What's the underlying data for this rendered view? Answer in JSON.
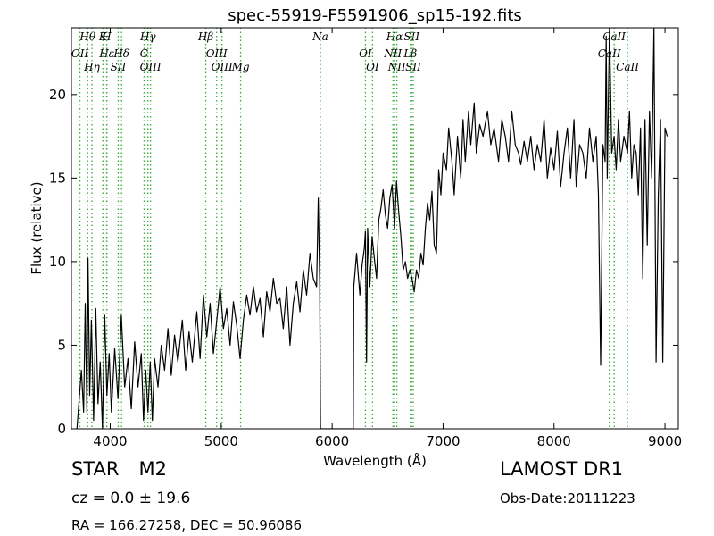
{
  "chart_data": {
    "type": "line",
    "title": "spec-55919-F5591906_sp15-192.fits",
    "xlabel": "Wavelength (Å)",
    "ylabel": "Flux (relative)",
    "xlim": [
      3650,
      9120
    ],
    "ylim": [
      0,
      24
    ],
    "xticks": [
      4000,
      5000,
      6000,
      7000,
      8000,
      9000
    ],
    "yticks": [
      0,
      5,
      10,
      15,
      20
    ],
    "grid": false,
    "series": [
      {
        "color": "#000000",
        "points": [
          [
            3700,
            0
          ],
          [
            3740,
            3.5
          ],
          [
            3760,
            1.0
          ],
          [
            3775,
            7.5
          ],
          [
            3790,
            1.0
          ],
          [
            3800,
            10.2
          ],
          [
            3815,
            2.0
          ],
          [
            3830,
            6.5
          ],
          [
            3850,
            0.5
          ],
          [
            3870,
            7.2
          ],
          [
            3890,
            1.5
          ],
          [
            3910,
            4.0
          ],
          [
            3930,
            0.0
          ],
          [
            3950,
            6.8
          ],
          [
            3970,
            2.0
          ],
          [
            3990,
            4.5
          ],
          [
            4010,
            1.0
          ],
          [
            4040,
            4.8
          ],
          [
            4070,
            1.8
          ],
          [
            4100,
            6.8
          ],
          [
            4130,
            2.5
          ],
          [
            4160,
            4.2
          ],
          [
            4190,
            1.2
          ],
          [
            4220,
            5.2
          ],
          [
            4250,
            2.5
          ],
          [
            4280,
            4.5
          ],
          [
            4300,
            0.5
          ],
          [
            4320,
            3.5
          ],
          [
            4340,
            1.0
          ],
          [
            4360,
            4.0
          ],
          [
            4380,
            0.5
          ],
          [
            4400,
            4.2
          ],
          [
            4430,
            2.5
          ],
          [
            4460,
            5.0
          ],
          [
            4490,
            3.5
          ],
          [
            4520,
            6.0
          ],
          [
            4550,
            3.2
          ],
          [
            4580,
            5.6
          ],
          [
            4610,
            4.0
          ],
          [
            4650,
            6.5
          ],
          [
            4680,
            3.5
          ],
          [
            4710,
            5.8
          ],
          [
            4740,
            4.0
          ],
          [
            4780,
            7.0
          ],
          [
            4810,
            4.2
          ],
          [
            4840,
            8.0
          ],
          [
            4870,
            5.5
          ],
          [
            4900,
            7.5
          ],
          [
            4930,
            4.5
          ],
          [
            4960,
            6.5
          ],
          [
            4990,
            8.5
          ],
          [
            5020,
            6.0
          ],
          [
            5050,
            7.2
          ],
          [
            5080,
            5.0
          ],
          [
            5110,
            7.6
          ],
          [
            5140,
            6.2
          ],
          [
            5170,
            4.2
          ],
          [
            5200,
            6.5
          ],
          [
            5230,
            8.0
          ],
          [
            5260,
            6.8
          ],
          [
            5290,
            8.5
          ],
          [
            5320,
            7.0
          ],
          [
            5350,
            7.8
          ],
          [
            5380,
            5.5
          ],
          [
            5410,
            8.2
          ],
          [
            5440,
            7.0
          ],
          [
            5470,
            9.0
          ],
          [
            5500,
            7.5
          ],
          [
            5530,
            7.8
          ],
          [
            5560,
            6.0
          ],
          [
            5590,
            8.5
          ],
          [
            5620,
            5.0
          ],
          [
            5650,
            7.5
          ],
          [
            5680,
            8.8
          ],
          [
            5710,
            7.0
          ],
          [
            5740,
            9.5
          ],
          [
            5770,
            8.0
          ],
          [
            5800,
            10.5
          ],
          [
            5830,
            9.0
          ],
          [
            5860,
            8.5
          ],
          [
            5875,
            13.8
          ],
          [
            5888,
            8.8
          ],
          [
            5895,
            0.0
          ],
          [
            6190,
            0.0
          ],
          [
            6195,
            8.5
          ],
          [
            6220,
            10.5
          ],
          [
            6250,
            8.0
          ],
          [
            6270,
            9.8
          ],
          [
            6290,
            10.8
          ],
          [
            6300,
            11.8
          ],
          [
            6310,
            4.0
          ],
          [
            6320,
            12.0
          ],
          [
            6340,
            8.5
          ],
          [
            6360,
            11.5
          ],
          [
            6380,
            10.2
          ],
          [
            6400,
            9.0
          ],
          [
            6420,
            12.5
          ],
          [
            6440,
            13.2
          ],
          [
            6460,
            14.3
          ],
          [
            6480,
            12.8
          ],
          [
            6500,
            12.0
          ],
          [
            6520,
            13.8
          ],
          [
            6540,
            14.6
          ],
          [
            6563,
            12.0
          ],
          [
            6580,
            14.8
          ],
          [
            6600,
            13.0
          ],
          [
            6620,
            11.5
          ],
          [
            6640,
            9.5
          ],
          [
            6660,
            10.0
          ],
          [
            6680,
            9.0
          ],
          [
            6700,
            9.5
          ],
          [
            6720,
            9.0
          ],
          [
            6740,
            8.2
          ],
          [
            6760,
            9.5
          ],
          [
            6780,
            9.0
          ],
          [
            6800,
            10.5
          ],
          [
            6820,
            9.8
          ],
          [
            6840,
            12.0
          ],
          [
            6860,
            13.5
          ],
          [
            6880,
            12.5
          ],
          [
            6900,
            14.2
          ],
          [
            6920,
            11.0
          ],
          [
            6940,
            10.5
          ],
          [
            6960,
            15.5
          ],
          [
            6980,
            14.0
          ],
          [
            7000,
            16.5
          ],
          [
            7030,
            15.5
          ],
          [
            7050,
            18.0
          ],
          [
            7080,
            16.0
          ],
          [
            7100,
            14.0
          ],
          [
            7130,
            17.5
          ],
          [
            7160,
            15.0
          ],
          [
            7180,
            18.5
          ],
          [
            7200,
            16.0
          ],
          [
            7230,
            19.0
          ],
          [
            7250,
            17.0
          ],
          [
            7280,
            19.5
          ],
          [
            7300,
            16.5
          ],
          [
            7330,
            18.2
          ],
          [
            7360,
            17.5
          ],
          [
            7400,
            19.0
          ],
          [
            7430,
            17.0
          ],
          [
            7460,
            18.0
          ],
          [
            7500,
            16.0
          ],
          [
            7530,
            18.5
          ],
          [
            7560,
            17.5
          ],
          [
            7590,
            16.0
          ],
          [
            7620,
            19.0
          ],
          [
            7650,
            17.0
          ],
          [
            7680,
            16.5
          ],
          [
            7700,
            15.8
          ],
          [
            7730,
            17.2
          ],
          [
            7760,
            16.0
          ],
          [
            7790,
            17.5
          ],
          [
            7820,
            15.5
          ],
          [
            7850,
            17.0
          ],
          [
            7880,
            16.0
          ],
          [
            7910,
            18.5
          ],
          [
            7940,
            15.0
          ],
          [
            7970,
            16.8
          ],
          [
            8000,
            15.5
          ],
          [
            8030,
            17.8
          ],
          [
            8060,
            14.5
          ],
          [
            8090,
            16.5
          ],
          [
            8120,
            18.0
          ],
          [
            8150,
            15.0
          ],
          [
            8180,
            18.5
          ],
          [
            8200,
            14.5
          ],
          [
            8230,
            17.0
          ],
          [
            8260,
            16.5
          ],
          [
            8290,
            15.0
          ],
          [
            8320,
            18.0
          ],
          [
            8350,
            16.0
          ],
          [
            8380,
            17.5
          ],
          [
            8400,
            14.0
          ],
          [
            8420,
            3.8
          ],
          [
            8440,
            17.0
          ],
          [
            8460,
            16.0
          ],
          [
            8470,
            23.5
          ],
          [
            8480,
            15.0
          ],
          [
            8500,
            25.0
          ],
          [
            8520,
            16.5
          ],
          [
            8542,
            17.5
          ],
          [
            8560,
            15.5
          ],
          [
            8580,
            18.5
          ],
          [
            8600,
            16.0
          ],
          [
            8630,
            17.5
          ],
          [
            8662,
            16.5
          ],
          [
            8680,
            19.0
          ],
          [
            8700,
            15.0
          ],
          [
            8720,
            17.0
          ],
          [
            8740,
            16.5
          ],
          [
            8760,
            14.0
          ],
          [
            8780,
            18.0
          ],
          [
            8800,
            9.0
          ],
          [
            8820,
            18.5
          ],
          [
            8840,
            11.0
          ],
          [
            8860,
            19.0
          ],
          [
            8880,
            15.0
          ],
          [
            8900,
            25.0
          ],
          [
            8920,
            4.0
          ],
          [
            8940,
            14.0
          ],
          [
            8960,
            18.5
          ],
          [
            8980,
            4.0
          ],
          [
            9000,
            18.0
          ],
          [
            9020,
            17.5
          ]
        ]
      }
    ],
    "emission_lines": [
      {
        "name": "Hθ",
        "wavelength": 3797
      },
      {
        "name": "OII",
        "wavelength": 3727
      },
      {
        "name": "Hη",
        "wavelength": 3835
      },
      {
        "name": "K",
        "wavelength": 3934
      },
      {
        "name": "Hε",
        "wavelength": 3970
      },
      {
        "name": "SII",
        "wavelength": 4072
      },
      {
        "name": "H",
        "wavelength": 3968
      },
      {
        "name": "Hδ",
        "wavelength": 4102
      },
      {
        "name": "OIII",
        "wavelength": 4363
      },
      {
        "name": "Hγ",
        "wavelength": 4340
      },
      {
        "name": "G",
        "wavelength": 4305
      },
      {
        "name": "OIII",
        "wavelength": 5007
      },
      {
        "name": "Hβ",
        "wavelength": 4861
      },
      {
        "name": "OIII",
        "wavelength": 4959
      },
      {
        "name": "Mg",
        "wavelength": 5175
      },
      {
        "name": "Na",
        "wavelength": 5894
      },
      {
        "name": "OI",
        "wavelength": 6300
      },
      {
        "name": "OI",
        "wavelength": 6364
      },
      {
        "name": "Hα",
        "wavelength": 6563
      },
      {
        "name": "NII",
        "wavelength": 6548
      },
      {
        "name": "NII",
        "wavelength": 6583
      },
      {
        "name": "SII",
        "wavelength": 6717
      },
      {
        "name": "Lβ",
        "wavelength": 6705
      },
      {
        "name": "SII",
        "wavelength": 6731
      },
      {
        "name": "CaII",
        "wavelength": 8542
      },
      {
        "name": "CaII",
        "wavelength": 8498
      },
      {
        "name": "CaII",
        "wavelength": 8662
      }
    ]
  },
  "info": {
    "object_class": "STAR",
    "subclass": "M2",
    "cz_text": "cz = 0.0 ± 19.6",
    "radec_text": "RA = 166.27258, DEC = 50.96086",
    "survey": "LAMOST DR1",
    "obs_date": "Obs-Date:20111223"
  },
  "colors": {
    "spectrum": "#000000",
    "line_markers": "#33aa33"
  }
}
